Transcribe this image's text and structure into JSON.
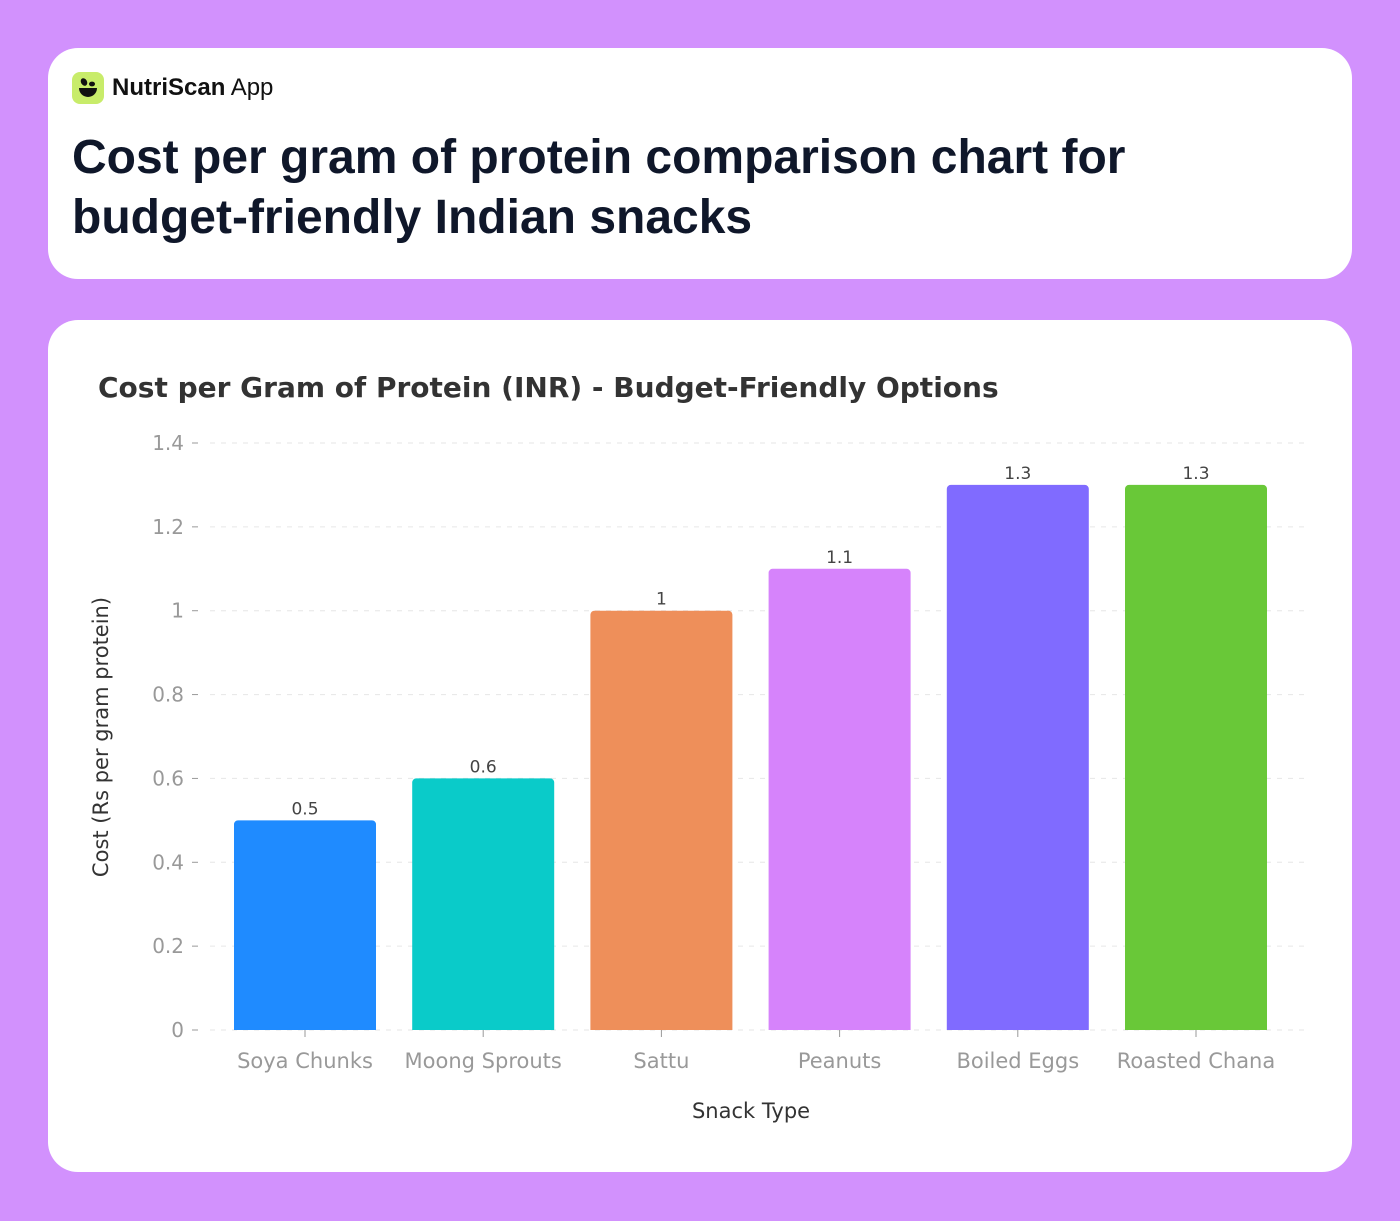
{
  "header": {
    "brand_name": "NutriScan",
    "brand_suffix": "App",
    "logo_icon": "leaf-bowl-icon",
    "title": "Cost per gram of protein comparison chart for budget-friendly Indian snacks"
  },
  "chart_data": {
    "type": "bar",
    "title": "Cost per Gram of Protein (INR) - Budget-Friendly Options",
    "xlabel": "Snack Type",
    "ylabel": "Cost (Rs per gram protein)",
    "categories": [
      "Soya Chunks",
      "Moong Sprouts",
      "Sattu",
      "Peanuts",
      "Boiled Eggs",
      "Roasted Chana"
    ],
    "values": [
      0.5,
      0.6,
      1,
      1.1,
      1.3,
      1.3
    ],
    "data_labels": [
      "0.5",
      "0.6",
      "1",
      "1.1",
      "1.3",
      "1.3"
    ],
    "colors": [
      "#1f8bff",
      "#0acbc9",
      "#ee8f5a",
      "#d683fb",
      "#806bff",
      "#69c838"
    ],
    "ylim": [
      0,
      1.4
    ],
    "yticks": [
      "0",
      "0.2",
      "0.4",
      "0.6",
      "0.8",
      "1",
      "1.2",
      "1.4"
    ],
    "grid": true
  }
}
